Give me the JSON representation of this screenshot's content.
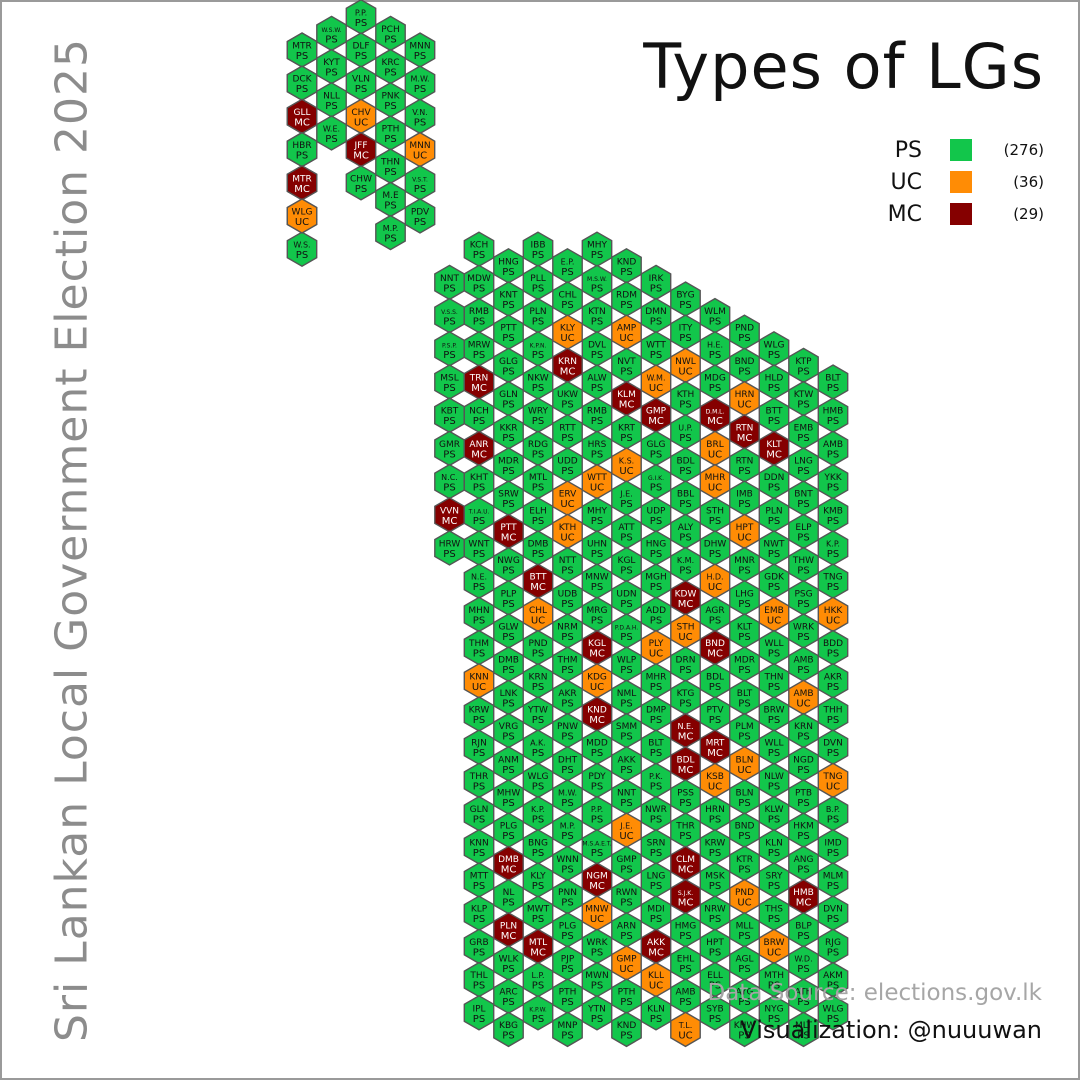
{
  "title": "Types of LGs",
  "vertical_title": "Sri Lankan Local Government Election 2025",
  "legend": [
    {
      "code": "PS",
      "count": "(276)",
      "color": "#12c64b"
    },
    {
      "code": "UC",
      "count": "(36)",
      "color": "#ff8c05"
    },
    {
      "code": "MC",
      "count": "(29)",
      "color": "#850000"
    }
  ],
  "source": "Data Source: elections.gov.lk",
  "credit": "Visualization: @nuuuwan",
  "colors": {
    "PS": "#12c64b",
    "UC": "#ff8c05",
    "MC": "#850000",
    "border": "#555555"
  },
  "hexes": [
    [
      "KRN",
      "PS",
      0
    ],
    [
      "V.W.",
      "PS",
      0
    ],
    [
      "W.N.",
      "PS",
      0
    ],
    [
      "VLV",
      "UC",
      0
    ],
    [
      "W.S.W.",
      "PS",
      0
    ],
    [
      "P.P.",
      "UC",
      0
    ],
    [
      "W.S.",
      "PS",
      0
    ],
    [
      "W.S.W.",
      "PS",
      0
    ],
    [
      "KYT",
      "PS",
      0
    ],
    [
      "NLL",
      "PS",
      0
    ],
    [
      "W.E.",
      "PS",
      0
    ],
    [
      "P.P.",
      "PS",
      0
    ],
    [
      "DLF",
      "PS",
      0
    ],
    [
      "VLN",
      "PS",
      0
    ],
    [
      "CHV",
      "UC",
      0
    ],
    [
      "JFF",
      "MC",
      0
    ],
    [
      "CHW",
      "PS",
      0
    ],
    [
      "PCH",
      "PS",
      1
    ],
    [
      "KRC",
      "PS",
      1
    ],
    [
      "PNK",
      "PS",
      1
    ],
    [
      "PTH",
      "PS",
      1
    ],
    [
      "THN",
      "PS",
      1
    ],
    [
      "M.E",
      "PS",
      1
    ],
    [
      "M.P.",
      "PS",
      1
    ],
    [
      "MNN",
      "PS",
      2
    ],
    [
      "M.W.",
      "PS",
      2
    ],
    [
      "V.N.",
      "PS",
      1
    ],
    [
      "MNN",
      "UC",
      2
    ],
    [
      "V.S.T.",
      "PS",
      1
    ],
    [
      "PDV",
      "PS",
      1
    ],
    [
      "NNT",
      "PS",
      2
    ],
    [
      "V.S.S.",
      "PS",
      1
    ],
    [
      "P.S.P.",
      "PS",
      1
    ],
    [
      "MSL",
      "PS",
      2
    ],
    [
      "VNG",
      "PS",
      1
    ],
    [
      "KBT",
      "PS",
      1
    ],
    [
      "GMR",
      "PS",
      1
    ],
    [
      "N.C.",
      "PS",
      3
    ],
    [
      "VVN",
      "MC",
      3
    ],
    [
      "HRW",
      "PS",
      3
    ],
    [
      "KCH",
      "PS",
      4
    ],
    [
      "MDW",
      "PS",
      3
    ],
    [
      "RMB",
      "PS",
      3
    ],
    [
      "MRW",
      "PS",
      3
    ],
    [
      "TRN",
      "MC",
      4
    ],
    [
      "NCH",
      "PS",
      3
    ],
    [
      "ANR",
      "MC",
      3
    ],
    [
      "KHT",
      "PS",
      3
    ],
    [
      "T.I.A.U.",
      "PS",
      4
    ],
    [
      "WNT",
      "PS",
      5
    ],
    [
      "N.E.",
      "PS",
      3
    ],
    [
      "MHN",
      "PS",
      3
    ],
    [
      "THM",
      "PS",
      3
    ],
    [
      "KNN",
      "UC",
      4
    ],
    [
      "KRW",
      "PS",
      5
    ],
    [
      "RJN",
      "PS",
      3
    ],
    [
      "THR",
      "PS",
      3
    ],
    [
      "GLN",
      "PS",
      3
    ],
    [
      "KNN",
      "PS",
      4
    ],
    [
      "MTT",
      "PS",
      4
    ],
    [
      "KLP",
      "PS",
      5
    ],
    [
      "GRB",
      "PS",
      5
    ],
    [
      "THL",
      "PS",
      3
    ],
    [
      "IPL",
      "PS",
      3
    ],
    [
      "HNG",
      "PS",
      3
    ],
    [
      "KNT",
      "PS",
      4
    ],
    [
      "PTT",
      "PS",
      5
    ],
    [
      "GLG",
      "PS",
      3
    ],
    [
      "GLN",
      "PS",
      3
    ],
    [
      "KKR",
      "PS",
      3
    ],
    [
      "MDR",
      "PS",
      4
    ],
    [
      "SRW",
      "PS",
      4
    ],
    [
      "PTT",
      "MC",
      5
    ],
    [
      "NWG",
      "PS",
      5
    ],
    [
      "PLP",
      "PS",
      3
    ],
    [
      "GLW",
      "PS",
      3
    ],
    [
      "DMB",
      "PS",
      3
    ],
    [
      "LNK",
      "PS",
      4
    ],
    [
      "VRG",
      "PS",
      4
    ],
    [
      "ANM",
      "PS",
      5
    ],
    [
      "MHW",
      "PS",
      5
    ],
    [
      "PLG",
      "PS",
      3
    ],
    [
      "DMB",
      "MC",
      3
    ],
    [
      "NL",
      "PS",
      3
    ],
    [
      "PLN",
      "MC",
      4
    ],
    [
      "WLK",
      "PS",
      4
    ],
    [
      "ARC",
      "PS",
      5
    ],
    [
      "KBG",
      "PS",
      5
    ],
    [
      "IBB",
      "PS",
      3
    ],
    [
      "PLL",
      "PS",
      3
    ],
    [
      "PLN",
      "PS",
      4
    ],
    [
      "K.P.N.",
      "PS",
      4
    ],
    [
      "NKW",
      "PS",
      5
    ],
    [
      "WRY",
      "PS",
      5
    ],
    [
      "RDG",
      "PS",
      3
    ],
    [
      "MTL",
      "PS",
      3
    ],
    [
      "ELH",
      "PS",
      4
    ],
    [
      "DMB",
      "PS",
      4
    ],
    [
      "BTT",
      "MC",
      4
    ],
    [
      "CHL",
      "UC",
      5
    ],
    [
      "PND",
      "PS",
      5
    ],
    [
      "KRN",
      "PS",
      3
    ],
    [
      "YTW",
      "PS",
      3
    ],
    [
      "A.K.",
      "PS",
      3
    ],
    [
      "WLG",
      "PS",
      4
    ],
    [
      "K.P.",
      "PS",
      4
    ],
    [
      "BNG",
      "PS",
      5
    ],
    [
      "KLY",
      "PS",
      5
    ],
    [
      "MWT",
      "PS",
      3
    ],
    [
      "MTL",
      "MC",
      3
    ],
    [
      "L.P.",
      "PS",
      3
    ],
    [
      "K.P.W.",
      "PS",
      4
    ],
    [
      "E.P.",
      "PS",
      4
    ],
    [
      "CHL",
      "PS",
      5
    ],
    [
      "KLY",
      "UC",
      5
    ],
    [
      "KRN",
      "MC",
      3
    ],
    [
      "UKW",
      "PS",
      3
    ],
    [
      "RTT",
      "PS",
      3
    ],
    [
      "UDD",
      "PS",
      4
    ],
    [
      "ERV",
      "UC",
      4
    ],
    [
      "KTH",
      "UC",
      4
    ],
    [
      "NTT",
      "PS",
      5
    ],
    [
      "UDB",
      "PS",
      5
    ],
    [
      "NRM",
      "PS",
      3
    ],
    [
      "THM",
      "PS",
      3
    ],
    [
      "AKR",
      "PS",
      3
    ],
    [
      "PNW",
      "PS",
      3
    ],
    [
      "DHT",
      "PS",
      4
    ],
    [
      "M.W.",
      "PS",
      4
    ],
    [
      "M.P.",
      "PS",
      4
    ],
    [
      "WNN",
      "PS",
      5
    ],
    [
      "PNN",
      "PS",
      5
    ],
    [
      "PLG",
      "PS",
      3
    ],
    [
      "PJP",
      "PS",
      3
    ],
    [
      "PTH",
      "PS",
      3
    ],
    [
      "MNP",
      "PS",
      4
    ],
    [
      "MHY",
      "PS",
      4
    ],
    [
      "M.S.W.",
      "PS",
      4
    ],
    [
      "KTN",
      "PS",
      5
    ],
    [
      "DVL",
      "PS",
      5
    ],
    [
      "ALW",
      "PS",
      3
    ],
    [
      "RMB",
      "PS",
      3
    ],
    [
      "HRS",
      "PS",
      3
    ],
    [
      "WTT",
      "UC",
      3
    ],
    [
      "MHY",
      "PS",
      4
    ],
    [
      "UHN",
      "PS",
      4
    ],
    [
      "MNW",
      "PS",
      5
    ],
    [
      "MRG",
      "PS",
      5
    ],
    [
      "KGL",
      "MC",
      3
    ],
    [
      "KDG",
      "UC",
      3
    ],
    [
      "KND",
      "MC",
      3
    ],
    [
      "MDD",
      "PS",
      4
    ],
    [
      "PDY",
      "PS",
      4
    ],
    [
      "P.P.",
      "PS",
      4
    ],
    [
      "M.S.A.E.T.",
      "PS",
      4
    ],
    [
      "NGM",
      "MC",
      6
    ],
    [
      "MNW",
      "UC",
      5
    ],
    [
      "WRK",
      "PS",
      5
    ],
    [
      "MWN",
      "PS",
      3
    ],
    [
      "YTN",
      "PS",
      3
    ],
    [
      "KND",
      "PS",
      3
    ],
    [
      "RDM",
      "PS",
      4
    ],
    [
      "AMP",
      "UC",
      4
    ],
    [
      "NVT",
      "PS",
      4
    ],
    [
      "KLM",
      "MC",
      4
    ],
    [
      "KRT",
      "PS",
      4
    ],
    [
      "K.S.",
      "UC",
      6
    ],
    [
      "J.E.",
      "PS",
      5
    ],
    [
      "ATT",
      "PS",
      5
    ],
    [
      "KGL",
      "PS",
      3
    ],
    [
      "UDN",
      "PS",
      3
    ],
    [
      "P.D.A.H.",
      "PS",
      3
    ],
    [
      "WLP",
      "PS",
      4
    ],
    [
      "NML",
      "PS",
      4
    ],
    [
      "SMM",
      "PS",
      4
    ],
    [
      "AKK",
      "PS",
      4
    ],
    [
      "NNT",
      "PS",
      4
    ],
    [
      "J.E.",
      "UC",
      6
    ],
    [
      "GMP",
      "PS",
      5
    ],
    [
      "RWN",
      "PS",
      5
    ],
    [
      "ARN",
      "PS",
      3
    ],
    [
      "GMP",
      "UC",
      3
    ],
    [
      "PTH",
      "PS",
      3
    ],
    [
      "KND",
      "PS",
      4
    ],
    [
      "IRK",
      "PS",
      4
    ],
    [
      "DMN",
      "PS",
      4
    ],
    [
      "WTT",
      "PS",
      6
    ],
    [
      "W.M.",
      "UC",
      6
    ],
    [
      "GMP",
      "MC",
      5
    ],
    [
      "GLG",
      "PS",
      3
    ],
    [
      "G.I.K.",
      "PS",
      3
    ],
    [
      "UDP",
      "PS",
      3
    ],
    [
      "HNG",
      "PS",
      4
    ],
    [
      "MGH",
      "PS",
      4
    ],
    [
      "ADD",
      "PS",
      4
    ],
    [
      "PLY",
      "UC",
      6
    ],
    [
      "MHR",
      "PS",
      5
    ],
    [
      "DMP",
      "PS",
      5
    ],
    [
      "BLT",
      "PS",
      3
    ],
    [
      "P.K.",
      "PS",
      3
    ],
    [
      "NWR",
      "PS",
      3
    ],
    [
      "SRN",
      "PS",
      4
    ],
    [
      "LNG",
      "PS",
      4
    ],
    [
      "MDI",
      "PS",
      4
    ],
    [
      "AKK",
      "MC",
      4
    ],
    [
      "KLL",
      "UC",
      6
    ],
    [
      "KLN",
      "PS",
      5
    ],
    [
      "BYG",
      "PS",
      5
    ],
    [
      "ITY",
      "PS",
      3
    ],
    [
      "NWL",
      "UC",
      3
    ],
    [
      "KTH",
      "PS",
      3
    ],
    [
      "U.P.",
      "PS",
      3
    ],
    [
      "BDL",
      "PS",
      4
    ],
    [
      "BBL",
      "PS",
      4
    ],
    [
      "ALY",
      "PS",
      4
    ],
    [
      "K.M.",
      "PS",
      6
    ],
    [
      "KDW",
      "MC",
      6
    ],
    [
      "STH",
      "UC",
      5
    ],
    [
      "DRN",
      "PS",
      3
    ],
    [
      "KTG",
      "PS",
      3
    ],
    [
      "N.E.",
      "MC",
      3
    ],
    [
      "BDL",
      "MC",
      4
    ],
    [
      "PSS",
      "PS",
      4
    ],
    [
      "THR",
      "PS",
      4
    ],
    [
      "CLM",
      "MC",
      6
    ],
    [
      "S.J.K.",
      "MC",
      6
    ],
    [
      "HMG",
      "PS",
      5
    ],
    [
      "EHL",
      "PS",
      5
    ],
    [
      "AMB",
      "PS",
      3
    ],
    [
      "T.L.",
      "UC",
      3
    ],
    [
      "WLM",
      "PS",
      3
    ],
    [
      "H.E.",
      "PS",
      4
    ],
    [
      "MDG",
      "PS",
      4
    ],
    [
      "D.M.L.",
      "MC",
      6
    ],
    [
      "BRL",
      "UC",
      6
    ],
    [
      "MHR",
      "UC",
      6
    ],
    [
      "STH",
      "PS",
      5
    ],
    [
      "DHW",
      "PS",
      5
    ],
    [
      "H.D.",
      "UC",
      3
    ],
    [
      "AGR",
      "PS",
      3
    ],
    [
      "BND",
      "MC",
      4
    ],
    [
      "BDL",
      "PS",
      4
    ],
    [
      "PTV",
      "PS",
      4
    ],
    [
      "MRT",
      "MC",
      6
    ],
    [
      "KSB",
      "UC",
      6
    ],
    [
      "HRN",
      "PS",
      5
    ],
    [
      "KRW",
      "PS",
      5
    ],
    [
      "MSK",
      "PS",
      3
    ],
    [
      "NRW",
      "PS",
      3
    ],
    [
      "HPT",
      "PS",
      3
    ],
    [
      "ELL",
      "PS",
      4
    ],
    [
      "SYB",
      "PS",
      4
    ],
    [
      "PND",
      "PS",
      6
    ],
    [
      "BND",
      "PS",
      6
    ],
    [
      "HRN",
      "UC",
      5
    ],
    [
      "RTN",
      "MC",
      3
    ],
    [
      "RTN",
      "PS",
      3
    ],
    [
      "IMB",
      "PS",
      3
    ],
    [
      "HPT",
      "UC",
      4
    ],
    [
      "MNR",
      "PS",
      4
    ],
    [
      "LHG",
      "PS",
      4
    ],
    [
      "KLT",
      "PS",
      6
    ],
    [
      "MDR",
      "PS",
      5
    ],
    [
      "BLT",
      "PS",
      5
    ],
    [
      "PLM",
      "PS",
      3
    ],
    [
      "BLN",
      "UC",
      3
    ],
    [
      "BLN",
      "PS",
      3
    ],
    [
      "BND",
      "PS",
      4
    ],
    [
      "KTR",
      "PS",
      4
    ],
    [
      "PND",
      "UC",
      6
    ],
    [
      "MLL",
      "PS",
      6
    ],
    [
      "AGL",
      "PS",
      5
    ],
    [
      "AYG",
      "PS",
      3
    ],
    [
      "KHW",
      "PS",
      3
    ],
    [
      "WLG",
      "PS",
      3
    ],
    [
      "HLD",
      "PS",
      4
    ],
    [
      "BTT",
      "PS",
      4
    ],
    [
      "KLT",
      "MC",
      6
    ],
    [
      "DDN",
      "PS",
      6
    ],
    [
      "PLN",
      "PS",
      5
    ],
    [
      "NWT",
      "PS",
      3
    ],
    [
      "GDK",
      "PS",
      3
    ],
    [
      "EMB",
      "UC",
      4
    ],
    [
      "WLL",
      "PS",
      4
    ],
    [
      "THN",
      "PS",
      4
    ],
    [
      "BRW",
      "PS",
      6
    ],
    [
      "WLL",
      "PS",
      6
    ],
    [
      "NLW",
      "PS",
      3
    ],
    [
      "KLW",
      "PS",
      3
    ],
    [
      "KLN",
      "PS",
      3
    ],
    [
      "SRY",
      "PS",
      4
    ],
    [
      "THS",
      "PS",
      4
    ],
    [
      "BRW",
      "UC",
      6
    ],
    [
      "MTH",
      "PS",
      6
    ],
    [
      "NYG",
      "PS",
      5
    ],
    [
      "KTP",
      "PS",
      3
    ],
    [
      "KTW",
      "PS",
      3
    ],
    [
      "EMB",
      "PS",
      3
    ],
    [
      "LNG",
      "PS",
      4
    ],
    [
      "BNT",
      "PS",
      6
    ],
    [
      "ELP",
      "PS",
      5
    ],
    [
      "THW",
      "PS",
      3
    ],
    [
      "PSG",
      "PS",
      3
    ],
    [
      "WRK",
      "PS",
      3
    ],
    [
      "AMB",
      "PS",
      4
    ],
    [
      "AMB",
      "UC",
      6
    ],
    [
      "KRN",
      "PS",
      6
    ],
    [
      "NGD",
      "PS",
      5
    ],
    [
      "PTB",
      "PS",
      3
    ],
    [
      "HKM",
      "PS",
      3
    ],
    [
      "ANG",
      "PS",
      3
    ],
    [
      "HMB",
      "MC",
      4
    ],
    [
      "BLP",
      "PS",
      6
    ],
    [
      "W.D.",
      "PS",
      6
    ],
    [
      "ATH",
      "PS",
      3
    ],
    [
      "MLT",
      "PS",
      3
    ],
    [
      "BLT",
      "PS",
      3
    ],
    [
      "HMB",
      "PS",
      4
    ],
    [
      "AMB",
      "PS",
      6
    ],
    [
      "YKK",
      "PS",
      5
    ],
    [
      "KMB",
      "PS",
      3
    ],
    [
      "K.P.",
      "PS",
      3
    ],
    [
      "TNG",
      "PS",
      3
    ],
    [
      "HKK",
      "UC",
      6
    ],
    [
      "BDD",
      "PS",
      6
    ],
    [
      "AKR",
      "PS",
      5
    ],
    [
      "THH",
      "PS",
      3
    ],
    [
      "DVN",
      "PS",
      3
    ],
    [
      "TNG",
      "UC",
      3
    ],
    [
      "B.P.",
      "PS",
      6
    ],
    [
      "IMD",
      "PS",
      5
    ],
    [
      "MLM",
      "PS",
      3
    ],
    [
      "DVN",
      "PS",
      3
    ],
    [
      "RJG",
      "PS",
      6
    ],
    [
      "AKM",
      "PS",
      6
    ],
    [
      "WLG",
      "PS",
      5
    ],
    [
      "MTR",
      "PS",
      3
    ],
    [
      "DCK",
      "PS",
      3
    ],
    [
      "GLL",
      "MC",
      6
    ],
    [
      "HBR",
      "PS",
      5
    ],
    [
      "MTR",
      "MC",
      3
    ],
    [
      "WLG",
      "UC",
      3
    ]
  ]
}
